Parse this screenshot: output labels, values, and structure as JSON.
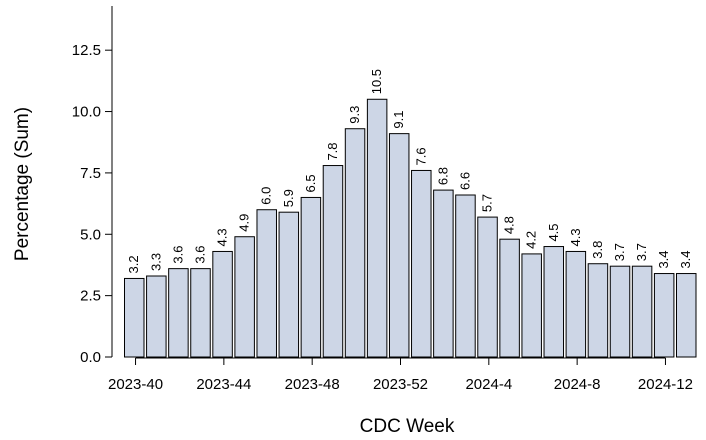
{
  "chart_data": {
    "type": "bar",
    "title": "",
    "xlabel": "CDC Week",
    "ylabel": "Percentage (Sum)",
    "ylim": [
      0,
      14.3
    ],
    "yticks": [
      0.0,
      2.5,
      5.0,
      7.5,
      10.0,
      12.5
    ],
    "ytick_labels": [
      "0.0",
      "2.5",
      "5.0",
      "7.5",
      "10.0",
      "12.5"
    ],
    "categories": [
      "2023-40",
      "2023-41",
      "2023-42",
      "2023-43",
      "2023-44",
      "2023-45",
      "2023-46",
      "2023-47",
      "2023-48",
      "2023-49",
      "2023-50",
      "2023-51",
      "2023-52",
      "2024-1",
      "2024-2",
      "2024-3",
      "2024-4",
      "2024-5",
      "2024-6",
      "2024-7",
      "2024-8",
      "2024-9",
      "2024-10",
      "2024-11",
      "2024-12",
      "2024-13"
    ],
    "values": [
      3.2,
      3.3,
      3.6,
      3.6,
      4.3,
      4.9,
      6.0,
      5.9,
      6.5,
      7.8,
      9.3,
      10.5,
      9.1,
      7.6,
      6.8,
      6.6,
      5.7,
      4.8,
      4.2,
      4.5,
      4.3,
      3.8,
      3.7,
      3.7,
      3.4,
      3.4
    ],
    "value_labels": [
      "3.2",
      "3.3",
      "3.6",
      "3.6",
      "4.3",
      "4.9",
      "6.0",
      "5.9",
      "6.5",
      "7.8",
      "9.3",
      "10.5",
      "9.1",
      "7.6",
      "6.8",
      "6.6",
      "5.7",
      "4.8",
      "4.2",
      "4.5",
      "4.3",
      "3.8",
      "3.7",
      "3.7",
      "3.4",
      "3.4"
    ],
    "xticks": [
      {
        "label": "2023-40",
        "index": 0.5
      },
      {
        "label": "2023-44",
        "index": 4.5
      },
      {
        "label": "2023-48",
        "index": 8.5
      },
      {
        "label": "2023-52",
        "index": 12.5
      },
      {
        "label": "2024-4",
        "index": 16.5
      },
      {
        "label": "2024-8",
        "index": 20.5
      },
      {
        "label": "2024-12",
        "index": 24.5
      }
    ],
    "bar_color": "#cdd6e6",
    "bar_edge_color": "#000000",
    "grid": false,
    "legend": "none"
  }
}
